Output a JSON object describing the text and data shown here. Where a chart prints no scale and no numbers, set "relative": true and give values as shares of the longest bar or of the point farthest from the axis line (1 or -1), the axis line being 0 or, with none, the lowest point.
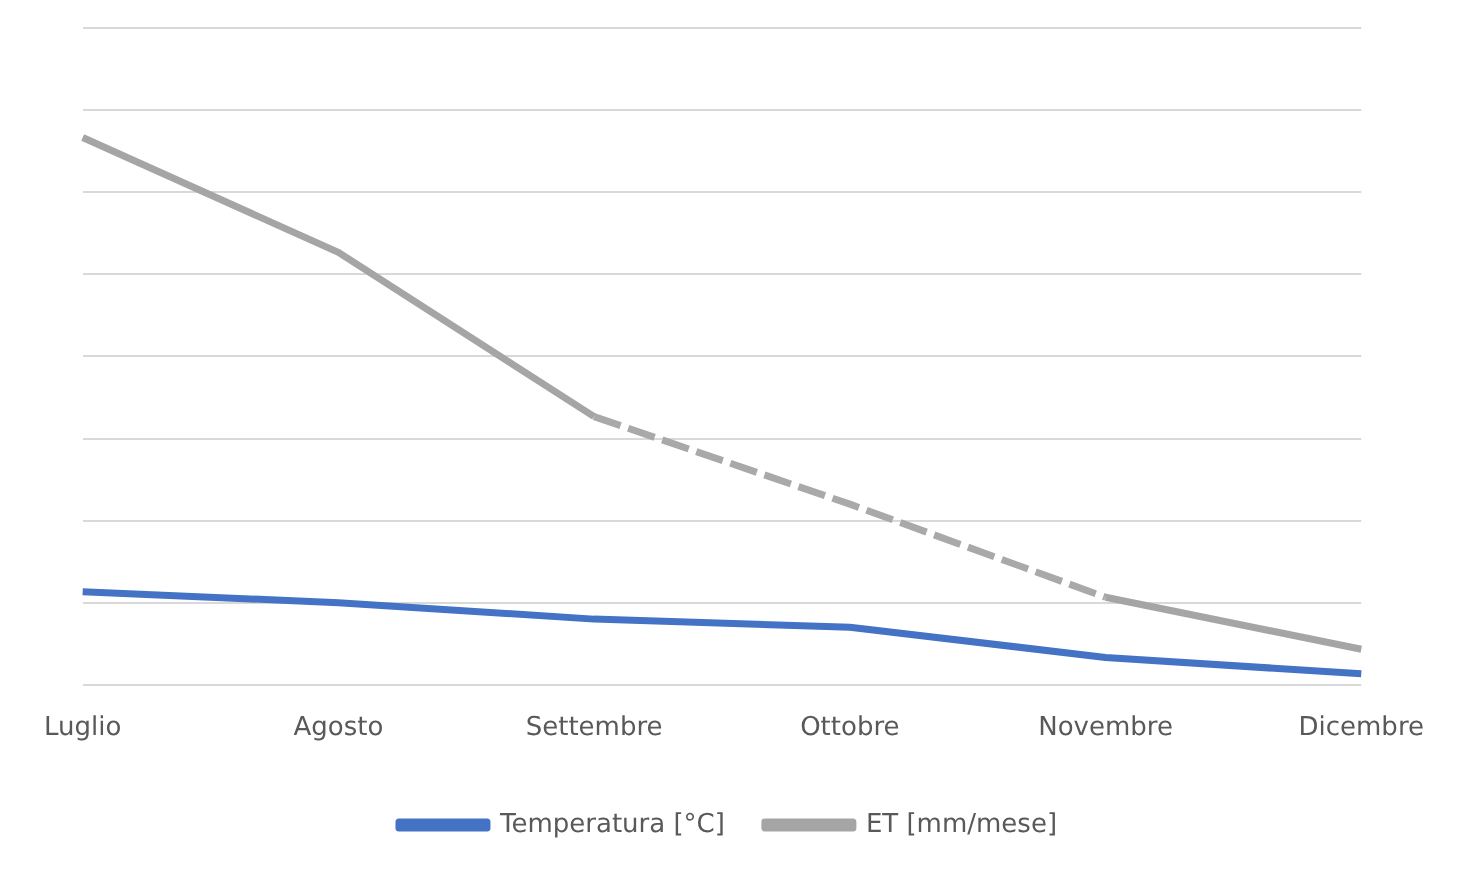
{
  "chart_data": {
    "type": "line",
    "relative": true,
    "grid": "y",
    "legend": "bottom",
    "marker": "none",
    "categories": [
      "Luglio",
      "Agosto",
      "Settembre",
      "Ottobre",
      "Novembre",
      "Dicembre"
    ],
    "series": [
      {
        "name": "Temperatura [°C]",
        "color": "#4472c4",
        "line_style": "solid",
        "values": [
          0.17,
          0.15,
          0.12,
          0.105,
          0.05,
          0.02
        ]
      },
      {
        "name": "ET [mm/mese]",
        "color": "#a5a5a5",
        "line_style": "solid",
        "values": [
          1,
          0.79,
          0.49,
          null,
          0.16,
          0.065
        ]
      },
      {
        "color": "#a9a9a9",
        "line_style": "dashed",
        "values": [
          null,
          null,
          0.49,
          0.33,
          0.16,
          null
        ]
      }
    ]
  }
}
